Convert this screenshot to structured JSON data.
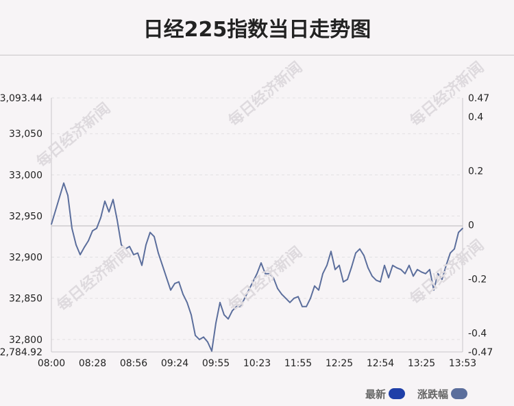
{
  "chart_data": {
    "type": "line",
    "title": "日经225指数当日走势图",
    "y_left_ticks": [
      "33,093.44",
      "33,050",
      "33,000",
      "32,950",
      "32,900",
      "32,850",
      "32,800",
      "32,784.92"
    ],
    "y_left_values": [
      33093.44,
      33050,
      33000,
      32950,
      32900,
      32850,
      32800,
      32784.92
    ],
    "ylim": [
      32784.92,
      33093.44
    ],
    "y_right_ticks": [
      "0.47",
      "0.4",
      "0.2",
      "0",
      "-0.2",
      "-0.4",
      "-0.47"
    ],
    "y_right_values": [
      0.47,
      0.4,
      0.2,
      0,
      -0.2,
      -0.4,
      -0.47
    ],
    "baseline": 32938,
    "x_ticks": [
      "08:00",
      "08:28",
      "08:56",
      "09:24",
      "09:55",
      "10:23",
      "11:55",
      "12:25",
      "12:54",
      "13:25",
      "13:53"
    ],
    "series": [
      {
        "name": "涨跌幅",
        "color": "#5b6e9c",
        "x": [
          0,
          1.5,
          3,
          4,
          5,
          6,
          7,
          8,
          9,
          10,
          11,
          12,
          13,
          14,
          15,
          16,
          17,
          18,
          19,
          20,
          21,
          22,
          23,
          24,
          25,
          26,
          27,
          28,
          29,
          30,
          31,
          32,
          33,
          34,
          35,
          36,
          37,
          38,
          39,
          40,
          41,
          42,
          43,
          44,
          45,
          46,
          47,
          48,
          49,
          50,
          51,
          52,
          53,
          54,
          55,
          56,
          57,
          58,
          59,
          60,
          61,
          62,
          63,
          64,
          65,
          66,
          67,
          68,
          69,
          70,
          71,
          72,
          73,
          74,
          75,
          76,
          77,
          78,
          79,
          80,
          81,
          82,
          83,
          84,
          85,
          86,
          87,
          88,
          89,
          90,
          91,
          92,
          93,
          94,
          95,
          96,
          97,
          98,
          99,
          100
        ],
        "values": [
          32940,
          32965,
          32990,
          32975,
          32935,
          32915,
          32903,
          32912,
          32920,
          32932,
          32935,
          32948,
          32968,
          32955,
          32970,
          32945,
          32915,
          32910,
          32913,
          32903,
          32905,
          32890,
          32915,
          32930,
          32925,
          32905,
          32890,
          32875,
          32860,
          32868,
          32870,
          32855,
          32845,
          32830,
          32805,
          32800,
          32803,
          32797,
          32786,
          32820,
          32845,
          32830,
          32825,
          32835,
          32840,
          32840,
          32850,
          32860,
          32870,
          32880,
          32893,
          32880,
          32880,
          32875,
          32862,
          32855,
          32850,
          32845,
          32850,
          32852,
          32840,
          32840,
          32850,
          32865,
          32860,
          32880,
          32890,
          32907,
          32885,
          32890,
          32870,
          32873,
          32888,
          32905,
          32910,
          32902,
          32887,
          32877,
          32872,
          32870,
          32890,
          32875,
          32890,
          32887,
          32885,
          32880,
          32890,
          32877,
          32885,
          32882,
          32880,
          32885,
          32860,
          32880,
          32873,
          32890,
          32905,
          32910,
          32930,
          32935
        ]
      }
    ],
    "legend": [
      {
        "label": "最新",
        "color": "#1f3fa8"
      },
      {
        "label": "涨跌幅",
        "color": "#5b6e9c"
      }
    ],
    "grid": true
  },
  "watermark_text": "每日经济新闻"
}
